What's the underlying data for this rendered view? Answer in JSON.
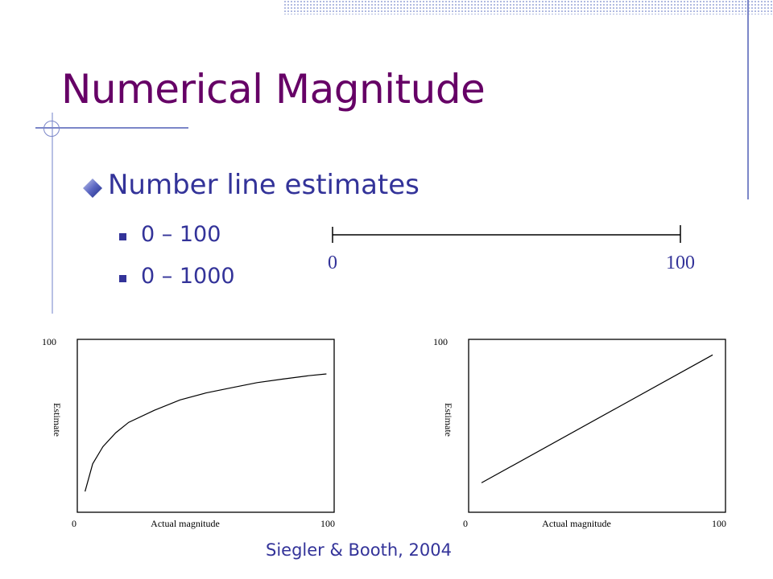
{
  "slide": {
    "title": "Numerical Magnitude",
    "bullet_main": "Number line estimates",
    "sub_items": [
      "0 – 100",
      "0 – 1000"
    ],
    "number_line": {
      "start_label": "0",
      "end_label": "100"
    },
    "citation": "Siegler & Booth, 2004"
  },
  "colors": {
    "title": "#660066",
    "text": "#333399",
    "accent": "#7b86c8"
  },
  "chart_data": [
    {
      "type": "line",
      "xlabel": "Actual magnitude",
      "ylabel": "Estimate",
      "xlim": [
        0,
        100
      ],
      "ylim": [
        0,
        100
      ],
      "x_ticks": [
        "0",
        "100"
      ],
      "y_ticks": [
        "100"
      ],
      "series": [
        {
          "x": [
            3,
            6,
            10,
            15,
            20,
            30,
            40,
            50,
            60,
            70,
            80,
            90,
            97
          ],
          "y": [
            12,
            28,
            38,
            46,
            52,
            59,
            65,
            69,
            72,
            75,
            77,
            79,
            80
          ]
        }
      ]
    },
    {
      "type": "line",
      "xlabel": "Actual magnitude",
      "ylabel": "Estimate",
      "xlim": [
        0,
        100
      ],
      "ylim": [
        0,
        100
      ],
      "x_ticks": [
        "0",
        "100"
      ],
      "y_ticks": [
        "100"
      ],
      "series": [
        {
          "x": [
            5,
            95
          ],
          "y": [
            17,
            91
          ]
        }
      ]
    }
  ]
}
